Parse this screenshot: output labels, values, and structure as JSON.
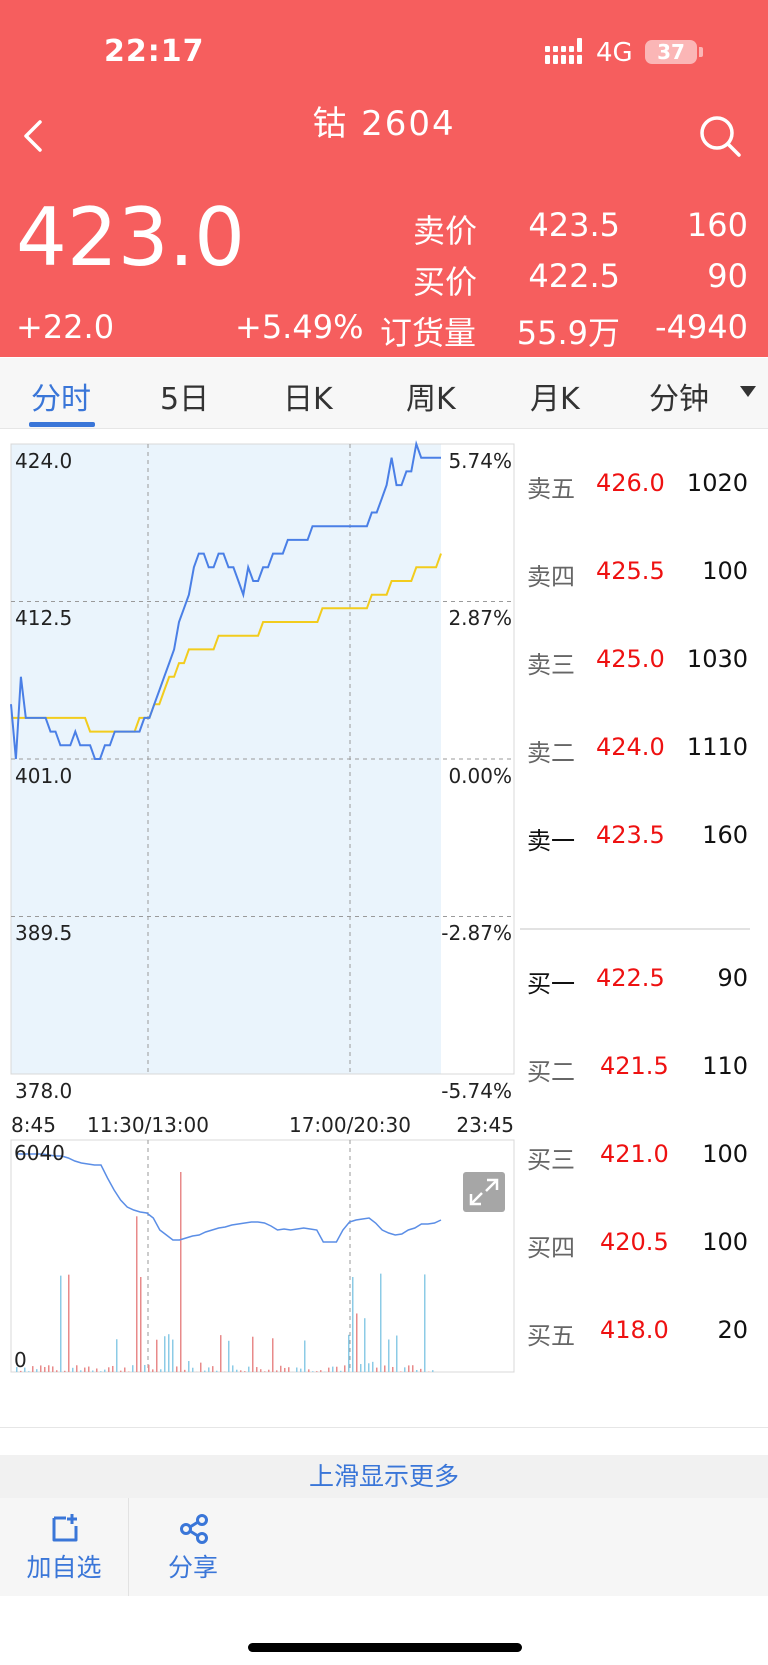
{
  "status_bar": {
    "time": "22:17",
    "network": "4G",
    "battery": "37"
  },
  "header": {
    "title": "钴  2604"
  },
  "quote": {
    "last_price": "423.0",
    "change": "+22.0",
    "change_pct": "+5.49%",
    "ask_label": "卖价",
    "ask_price": "423.5",
    "ask_volume": "160",
    "bid_label": "买价",
    "bid_price": "422.5",
    "bid_volume": "90",
    "oi_label": "订货量",
    "open_interest": "55.9万",
    "oi_change": "-4940"
  },
  "tabs": [
    "分时",
    "5日",
    "日K",
    "周K",
    "月K",
    "分钟"
  ],
  "active_tab": 0,
  "chart_data": {
    "type": "line",
    "y_left_ticks": [
      "424.0",
      "412.5",
      "401.0",
      "389.5",
      "378.0"
    ],
    "y_right_ticks": [
      "5.74%",
      "2.87%",
      "0.00%",
      "-2.87%",
      "-5.74%"
    ],
    "ylim": [
      378.0,
      424.0
    ],
    "x_tick_labels": [
      "8:45",
      "11:30/13:00",
      "17:00/20:30",
      "23:45"
    ],
    "series": [
      {
        "color": "#4a7fe6",
        "values": [
          405,
          401,
          407,
          404,
          404,
          404,
          404,
          404,
          403,
          403,
          402,
          402,
          402,
          403,
          402,
          402,
          402,
          401,
          401,
          402,
          402,
          403,
          403,
          403,
          403,
          403,
          403,
          404,
          404,
          405,
          406,
          407,
          408,
          409,
          411,
          412,
          413,
          415,
          416,
          416,
          415,
          415,
          416,
          416,
          415,
          415,
          414,
          413,
          415,
          414,
          414,
          415,
          415,
          416,
          416,
          416,
          417,
          417,
          417,
          417,
          417,
          418,
          418,
          418,
          418,
          418,
          418,
          418,
          418,
          418,
          418,
          418,
          418,
          419,
          419,
          420,
          421,
          423,
          421,
          421,
          422,
          422,
          424,
          423,
          423,
          423,
          423,
          423
        ]
      },
      {
        "color": "#f2cc1d",
        "values": [
          404,
          404,
          404,
          404,
          404,
          404,
          404,
          404,
          404,
          404,
          404,
          404,
          404,
          404,
          404,
          404,
          403,
          403,
          403,
          403,
          403,
          403,
          403,
          403,
          403,
          403,
          404,
          404,
          404,
          405,
          405,
          406,
          407,
          407,
          408,
          408,
          409,
          409,
          409,
          409,
          409,
          409,
          410,
          410,
          410,
          410,
          410,
          410,
          410,
          410,
          410,
          411,
          411,
          411,
          411,
          411,
          411,
          411,
          411,
          411,
          411,
          411,
          411,
          412,
          412,
          412,
          412,
          412,
          412,
          412,
          412,
          412,
          412,
          413,
          413,
          413,
          413,
          414,
          414,
          414,
          414,
          414,
          415,
          415,
          415,
          415,
          415,
          416
        ]
      }
    ],
    "volume": {
      "ymax_label": "6040",
      "ymin_label": "0"
    }
  },
  "order_book": {
    "asks": [
      {
        "label": "卖五",
        "price": "426.0",
        "vol": "1020"
      },
      {
        "label": "卖四",
        "price": "425.5",
        "vol": "100"
      },
      {
        "label": "卖三",
        "price": "425.0",
        "vol": "1030"
      },
      {
        "label": "卖二",
        "price": "424.0",
        "vol": "1110"
      },
      {
        "label": "卖一",
        "price": "423.5",
        "vol": "160"
      }
    ],
    "bids": [
      {
        "label": "买一",
        "price": "422.5",
        "vol": "90"
      },
      {
        "label": "买二",
        "price": "421.5",
        "vol": "110"
      },
      {
        "label": "买三",
        "price": "421.0",
        "vol": "100"
      },
      {
        "label": "买四",
        "price": "420.5",
        "vol": "100"
      },
      {
        "label": "买五",
        "price": "418.0",
        "vol": "20"
      }
    ]
  },
  "more_hint": "上滑显示更多",
  "bottom_bar": {
    "add_watch": "加自选",
    "share": "分享"
  },
  "colors": {
    "header_bg": "#f65e5e",
    "accent": "#3a76d8",
    "price_line": "#4a7fe6",
    "avg_line": "#f2cc1d",
    "down": "#ee1111"
  }
}
